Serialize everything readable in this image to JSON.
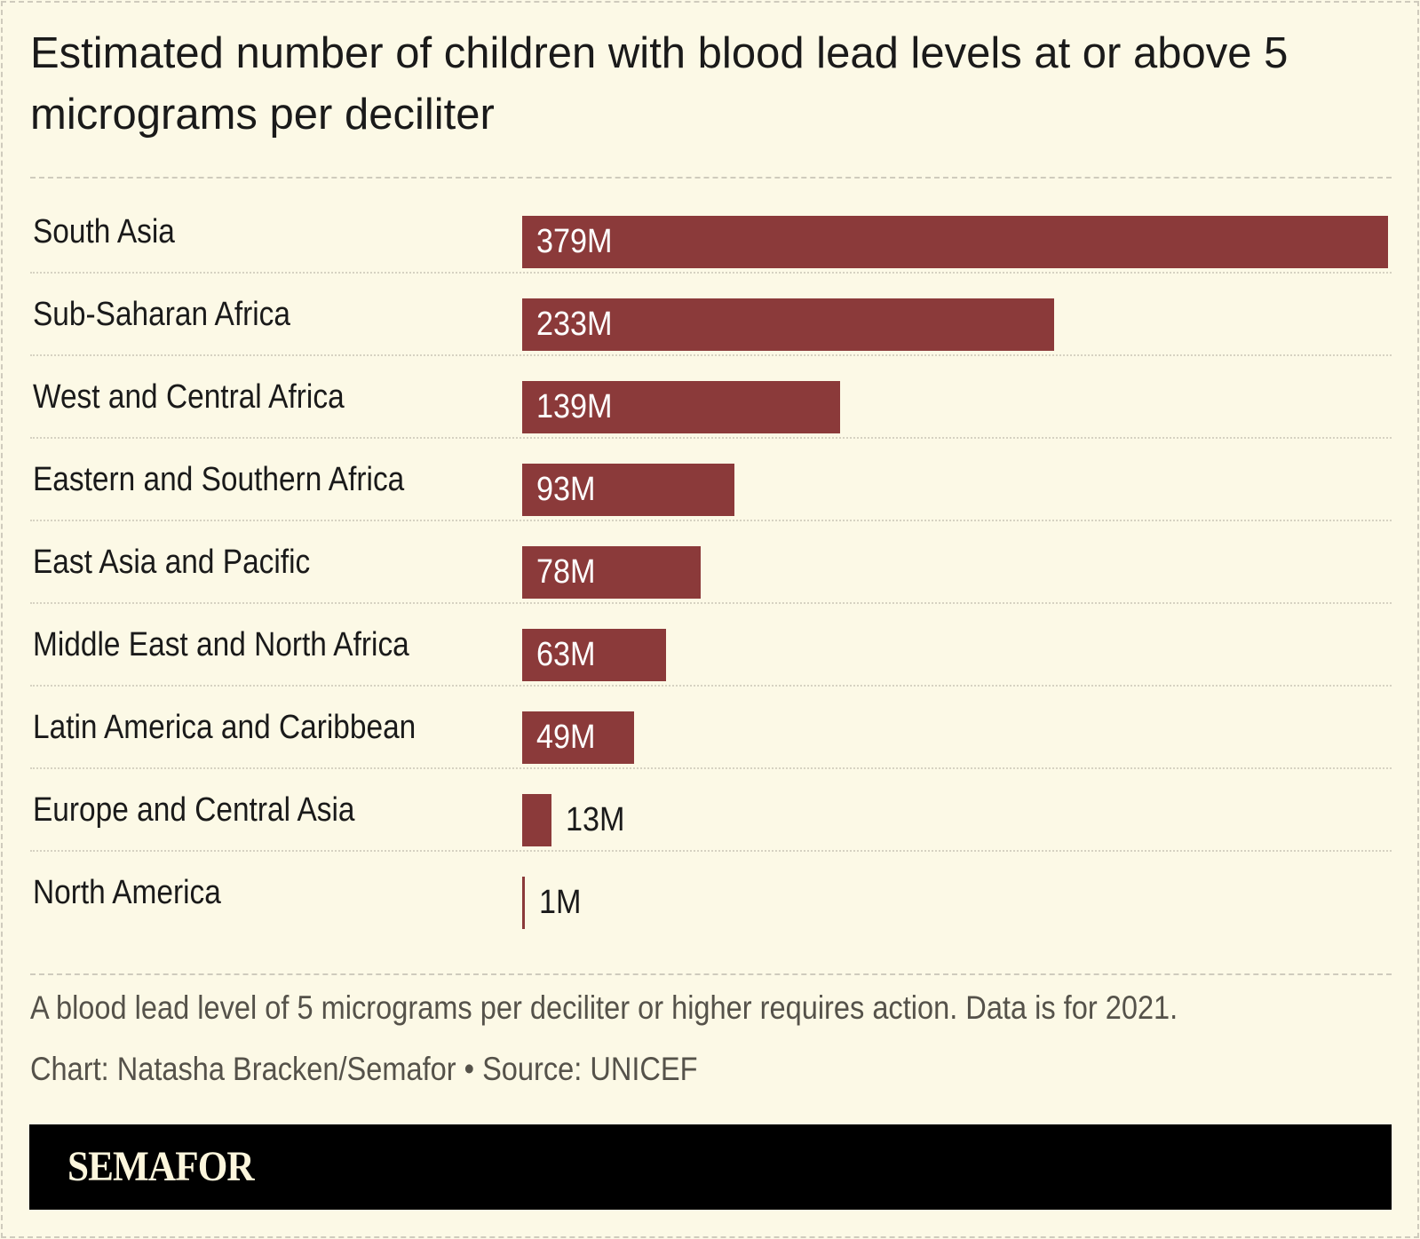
{
  "chart_data": {
    "type": "bar",
    "orientation": "horizontal",
    "title": "Estimated number of children with blood lead levels at or above 5 micrograms per deciliter",
    "categories": [
      "South Asia",
      "Sub-Saharan Africa",
      "West and Central Africa",
      "Eastern and Southern Africa",
      "East Asia and Pacific",
      "Middle East and North Africa",
      "Latin America and Caribbean",
      "Europe and Central Asia",
      "North America"
    ],
    "values": [
      379,
      233,
      139,
      93,
      78,
      63,
      49,
      13,
      1
    ],
    "value_labels": [
      "379M",
      "233M",
      "139M",
      "93M",
      "78M",
      "63M",
      "49M",
      "13M",
      "1M"
    ],
    "unit": "M",
    "xlim": [
      0,
      379
    ],
    "grid": false,
    "legend": "none",
    "bar_color": "#8b3a3a"
  },
  "note": "A blood lead level of 5 micrograms per deciliter or higher requires action. Data is for 2021.",
  "credit": "Chart: Natasha Bracken/Semafor • Source: UNICEF",
  "brand": "SEMAFOR",
  "colors": {
    "background": "#fcf9e6",
    "bar": "#8b3a3a",
    "footer": "#000000"
  }
}
